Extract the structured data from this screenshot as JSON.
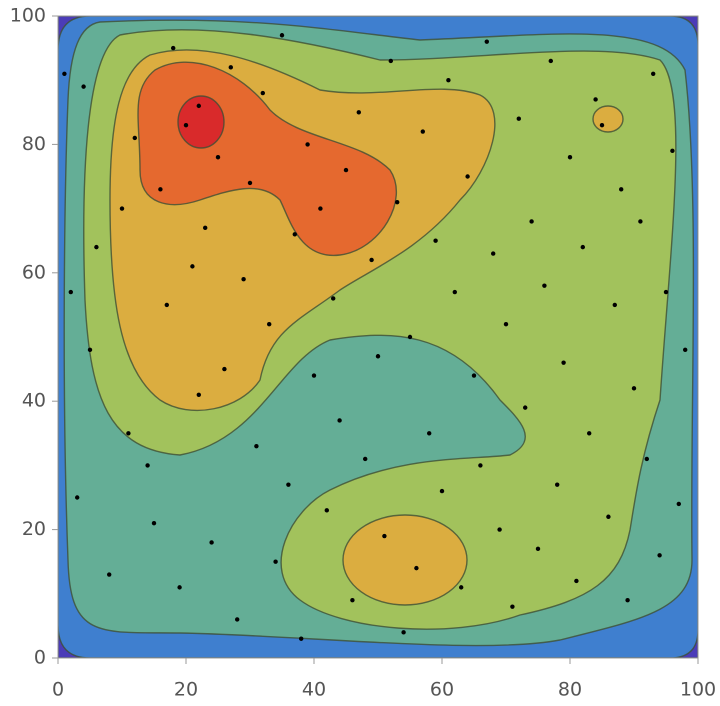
{
  "chart_data": {
    "type": "contour",
    "xlim": [
      0,
      100
    ],
    "ylim": [
      0,
      100
    ],
    "xticks": [
      0,
      20,
      40,
      60,
      80,
      100
    ],
    "yticks": [
      0,
      20,
      40,
      60,
      80,
      100
    ],
    "contour_colors": [
      "#4b3cb8",
      "#3f7fcf",
      "#64ae96",
      "#a2c25c",
      "#dbad40",
      "#e5692f",
      "#d92a2b"
    ],
    "point_color": "#000000",
    "x": [
      1,
      2,
      3,
      4,
      5,
      6,
      8,
      10,
      11,
      12,
      14,
      15,
      16,
      17,
      18,
      19,
      20,
      21,
      22,
      22,
      23,
      24,
      25,
      26,
      27,
      28,
      29,
      30,
      31,
      32,
      33,
      34,
      35,
      36,
      37,
      38,
      39,
      40,
      41,
      42,
      43,
      44,
      45,
      46,
      47,
      48,
      49,
      50,
      51,
      52,
      53,
      54,
      55,
      56,
      57,
      58,
      59,
      60,
      61,
      62,
      63,
      64,
      65,
      66,
      67,
      68,
      69,
      70,
      71,
      72,
      73,
      74,
      75,
      76,
      77,
      78,
      79,
      80,
      81,
      82,
      83,
      84,
      85,
      86,
      87,
      88,
      89,
      90,
      91,
      92,
      93,
      94,
      95,
      96,
      97,
      98
    ],
    "values": [
      91,
      57,
      25,
      89,
      48,
      64,
      13,
      70,
      35,
      81,
      30,
      21,
      73,
      55,
      95,
      11,
      83,
      61,
      86,
      41,
      67,
      18,
      78,
      45,
      92,
      6,
      59,
      74,
      33,
      88,
      52,
      15,
      97,
      27,
      66,
      3,
      80,
      44,
      70,
      23,
      56,
      37,
      76,
      9,
      85,
      31,
      62,
      47,
      19,
      93,
      71,
      4,
      50,
      14,
      82,
      35,
      65,
      26,
      90,
      57,
      11,
      75,
      44,
      30,
      96,
      63,
      20,
      52,
      8,
      84,
      39,
      68,
      17,
      58,
      93,
      27,
      46,
      78,
      12,
      64,
      35,
      87,
      83,
      22,
      55,
      73,
      9,
      42,
      68,
      31,
      91,
      16,
      57,
      79,
      24,
      48
    ]
  }
}
